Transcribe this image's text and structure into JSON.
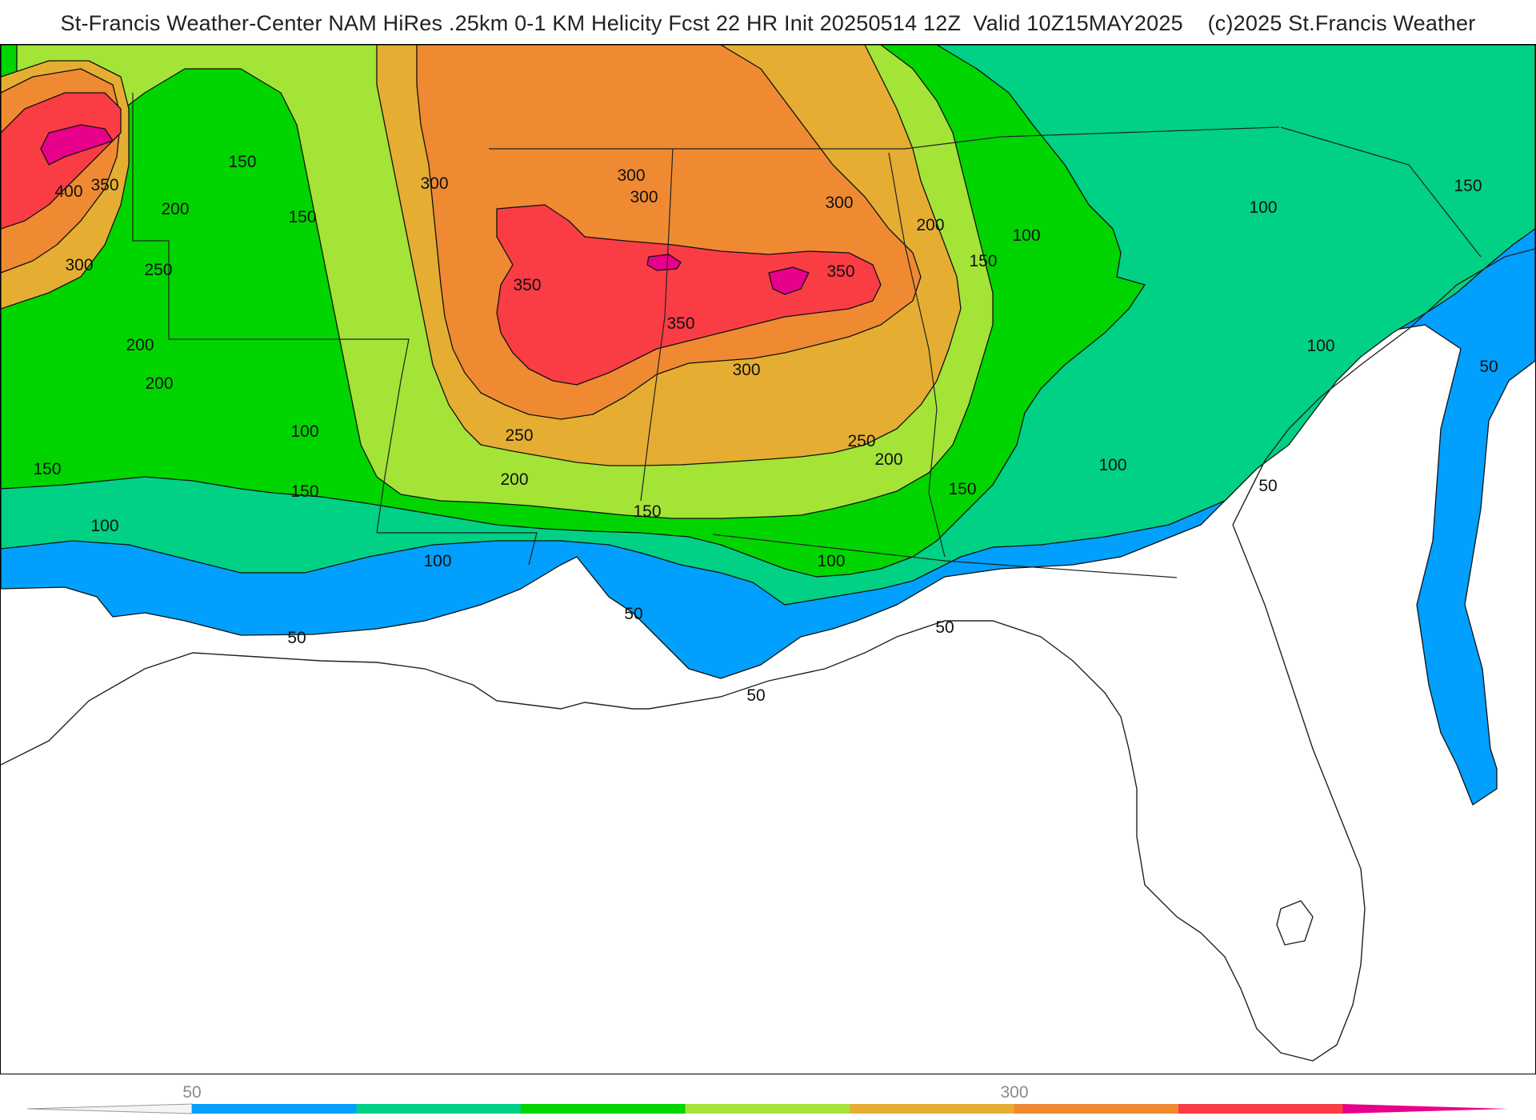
{
  "header": {
    "title": "St-Francis Weather-Center NAM HiRes .25km 0-1 KM Helicity Fcst 22 HR Init 20250514 12Z  Valid 10Z15MAY2025    (c)2025 St.Francis Weather"
  },
  "map": {
    "field": "0-1 KM Helicity",
    "contour_levels": [
      50,
      100,
      150,
      200,
      250,
      300,
      350,
      400
    ],
    "contour_labels": [
      "400",
      "350",
      "150",
      "150",
      "200",
      "300",
      "250",
      "200",
      "200",
      "150",
      "100",
      "150",
      "50",
      "100",
      "50",
      "300",
      "300",
      "300",
      "350",
      "350",
      "350",
      "300",
      "300",
      "250",
      "250",
      "200",
      "200",
      "200",
      "150",
      "150",
      "150",
      "100",
      "100",
      "100",
      "100",
      "50",
      "50",
      "50",
      "100",
      "100",
      "150",
      "50"
    ]
  },
  "legend": {
    "tick_labels": [
      "50",
      "300"
    ],
    "colors": {
      "bin_50_100": "#01a0fe",
      "bin_100_150": "#00d185",
      "bin_150_200": "#00d500",
      "bin_200_250": "#a3e437",
      "bin_250_300": "#e5ae32",
      "bin_300_350": "#ef8a32",
      "bin_350_400": "#fa3c45",
      "bin_400_plus": "#e8008a"
    }
  }
}
